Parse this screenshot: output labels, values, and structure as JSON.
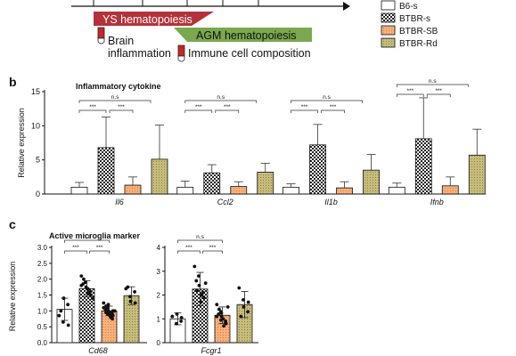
{
  "timeline": {
    "ys_label": "YS hematopoiesis",
    "agm_label": "AGM hematopoiesis",
    "brain_label_1": "Brain",
    "brain_label_2": "inflammation",
    "immune_label": "Immune cell composition",
    "colors": {
      "ys": "#b5323a",
      "agm": "#7aa84e"
    }
  },
  "legend": {
    "items": [
      {
        "name": "B6-s",
        "pattern": "white"
      },
      {
        "name": "BTBR-s",
        "pattern": "checker"
      },
      {
        "name": "BTBR-SB",
        "pattern": "orange"
      },
      {
        "name": "BTBR-Rd",
        "pattern": "olive"
      }
    ]
  },
  "panel_b": {
    "letter": "b"
  },
  "panel_c": {
    "letter": "c"
  },
  "chart_data": [
    {
      "type": "bar",
      "title": "Inflammatory cytokine",
      "ylabel": "Relative expression",
      "xlabel": "",
      "ylim": [
        0,
        15
      ],
      "yticks": [
        "0",
        "5",
        "10",
        "15"
      ],
      "categories": [
        "Il6",
        "Ccl2",
        "Il1b",
        "Ifnb"
      ],
      "series": [
        {
          "name": "B6-s",
          "values": [
            1.0,
            1.0,
            1.0,
            1.0
          ],
          "errors": [
            0.7,
            0.9,
            0.5,
            0.6
          ]
        },
        {
          "name": "BTBR-s",
          "values": [
            6.8,
            3.1,
            7.2,
            8.1
          ],
          "errors": [
            4.5,
            1.2,
            3.0,
            6.0
          ]
        },
        {
          "name": "BTBR-SB",
          "values": [
            1.3,
            1.1,
            0.9,
            1.2
          ],
          "errors": [
            1.2,
            0.7,
            0.9,
            1.3
          ]
        },
        {
          "name": "BTBR-Rd",
          "values": [
            5.1,
            3.2,
            3.5,
            5.7
          ],
          "errors": [
            5.0,
            1.3,
            2.3,
            3.8
          ]
        }
      ],
      "significance": [
        {
          "top": "n.s",
          "left": "***",
          "right": "***"
        },
        {
          "top": "n.s",
          "left": "***",
          "right": "***"
        },
        {
          "top": "n.s",
          "left": "***",
          "right": "***"
        },
        {
          "top": "n.s",
          "left": "***",
          "right": "***"
        }
      ]
    },
    {
      "type": "bar",
      "title": "Active microglia marker",
      "ylabel": "Relative expression",
      "xlabel": "",
      "categories": [
        "Cd68",
        "Fcgr1"
      ],
      "subplots": [
        {
          "category": "Cd68",
          "ylim": [
            0,
            3
          ],
          "yticks": [
            "0.0",
            "0.5",
            "1.0",
            "1.5",
            "2.0",
            "2.5",
            "3.0"
          ],
          "values": [
            1.05,
            1.7,
            1.0,
            1.48
          ],
          "errors": [
            0.35,
            0.25,
            0.15,
            0.28
          ],
          "points": [
            [
              0.85,
              0.65,
              1.4,
              1.2,
              0.55,
              1.0
            ],
            [
              2.1,
              1.9,
              1.75,
              1.6,
              1.5,
              1.85,
              2.0,
              1.7,
              1.55,
              1.4,
              1.8
            ],
            [
              1.25,
              1.1,
              1.0,
              0.9,
              0.85,
              1.05,
              1.15,
              0.95,
              0.8,
              1.0,
              1.1,
              0.9,
              1.2,
              0.75,
              1.0,
              1.05,
              0.95,
              0.85
            ],
            [
              1.7,
              1.45,
              1.3,
              1.6,
              1.25,
              1.75
            ]
          ],
          "significance": {
            "top": "n.s",
            "left": "***",
            "right": "***"
          }
        },
        {
          "category": "Fcgr1",
          "ylim": [
            0,
            4
          ],
          "yticks": [
            "0",
            "1",
            "2",
            "3",
            "4"
          ],
          "values": [
            1.0,
            2.25,
            1.15,
            1.6
          ],
          "errors": [
            0.25,
            0.7,
            0.35,
            0.55
          ],
          "points": [
            [
              1.1,
              0.8,
              1.2,
              0.9,
              1.05
            ],
            [
              3.2,
              2.8,
              2.4,
              2.1,
              1.9,
              2.6,
              2.2,
              1.7,
              2.0,
              2.5
            ],
            [
              1.6,
              1.3,
              1.1,
              0.9,
              0.8,
              1.2,
              1.4,
              1.0,
              0.7,
              1.5,
              1.1,
              0.95,
              1.25,
              0.85
            ],
            [
              2.3,
              1.8,
              1.5,
              1.3,
              1.7,
              1.1
            ]
          ],
          "significance": {
            "top": "n.s",
            "left": "***",
            "right": "***"
          }
        }
      ],
      "series": [
        {
          "name": "B6-s"
        },
        {
          "name": "BTBR-s"
        },
        {
          "name": "BTBR-SB"
        },
        {
          "name": "BTBR-Rd"
        }
      ]
    }
  ]
}
